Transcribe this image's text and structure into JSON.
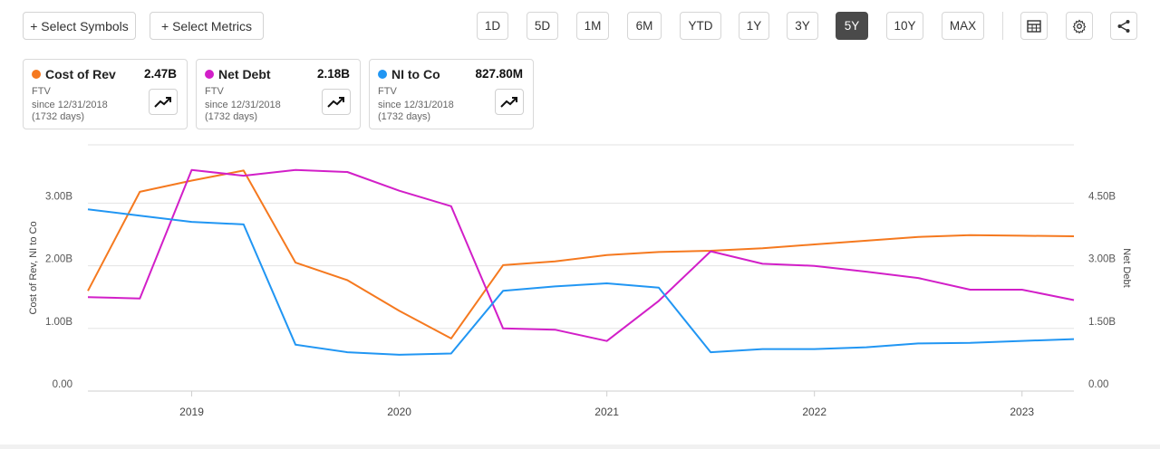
{
  "toolbar": {
    "select_symbols": "+ Select Symbols",
    "select_metrics": "+ Select Metrics",
    "ranges": [
      "1D",
      "5D",
      "1M",
      "6M",
      "YTD",
      "1Y",
      "3Y",
      "5Y",
      "10Y",
      "MAX"
    ],
    "active_range": "5Y",
    "icons": [
      "table-icon",
      "gear-icon",
      "share-icon"
    ]
  },
  "cards": [
    {
      "name": "Cost of Rev",
      "value": "2.47B",
      "ticker": "FTV",
      "since": "since 12/31/2018",
      "days": "(1732 days)",
      "color": "#f5791f"
    },
    {
      "name": "Net Debt",
      "value": "2.18B",
      "ticker": "FTV",
      "since": "since 12/31/2018",
      "days": "(1732 days)",
      "color": "#d21fc8"
    },
    {
      "name": "NI to Co",
      "value": "827.80M",
      "ticker": "FTV",
      "since": "since 12/31/2018",
      "days": "(1732 days)",
      "color": "#2196f3"
    }
  ],
  "chart_data": {
    "type": "line",
    "x": [
      2018.5,
      2018.75,
      2019.0,
      2019.25,
      2019.5,
      2019.75,
      2020.0,
      2020.25,
      2020.5,
      2020.75,
      2021.0,
      2021.25,
      2021.5,
      2021.75,
      2022.0,
      2022.25,
      2022.5,
      2022.75,
      2023.0,
      2023.25
    ],
    "x_ticks": [
      "2019",
      "2020",
      "2021",
      "2022",
      "2023"
    ],
    "x_tick_values": [
      2019,
      2020,
      2021,
      2022,
      2023
    ],
    "xlim": [
      2018.5,
      2023.25
    ],
    "left_axis": {
      "label": "Cost of Rev, NI to Co",
      "ticks": [
        "0.00",
        "1.00B",
        "2.00B",
        "3.00B"
      ],
      "tick_values": [
        0,
        1,
        2,
        3
      ],
      "ylim": [
        0,
        3.93
      ]
    },
    "right_axis": {
      "label": "Net Debt",
      "ticks": [
        "0.00",
        "1.50B",
        "3.00B",
        "4.50B"
      ],
      "tick_values": [
        0,
        1.5,
        3.0,
        4.5
      ],
      "ylim": [
        0,
        5.9
      ]
    },
    "series": [
      {
        "name": "Cost of Rev",
        "axis": "left",
        "color": "#f5791f",
        "values": [
          1.6,
          3.18,
          3.36,
          3.52,
          2.05,
          1.77,
          1.28,
          0.84,
          2.01,
          2.07,
          2.17,
          2.22,
          2.24,
          2.28,
          2.34,
          2.4,
          2.46,
          2.49,
          2.48,
          2.47
        ]
      },
      {
        "name": "Net Debt",
        "axis": "right",
        "color": "#d21fc8",
        "values": [
          2.25,
          2.22,
          5.3,
          5.16,
          5.3,
          5.25,
          4.8,
          4.43,
          1.5,
          1.47,
          1.2,
          2.16,
          3.35,
          3.05,
          3.0,
          2.86,
          2.71,
          2.43,
          2.43,
          2.18
        ]
      },
      {
        "name": "NI to Co",
        "axis": "left",
        "color": "#2196f3",
        "values": [
          2.9,
          2.8,
          2.7,
          2.66,
          0.74,
          0.62,
          0.58,
          0.6,
          1.6,
          1.67,
          1.72,
          1.65,
          0.62,
          0.67,
          0.67,
          0.7,
          0.76,
          0.77,
          0.8,
          0.83
        ]
      }
    ]
  }
}
